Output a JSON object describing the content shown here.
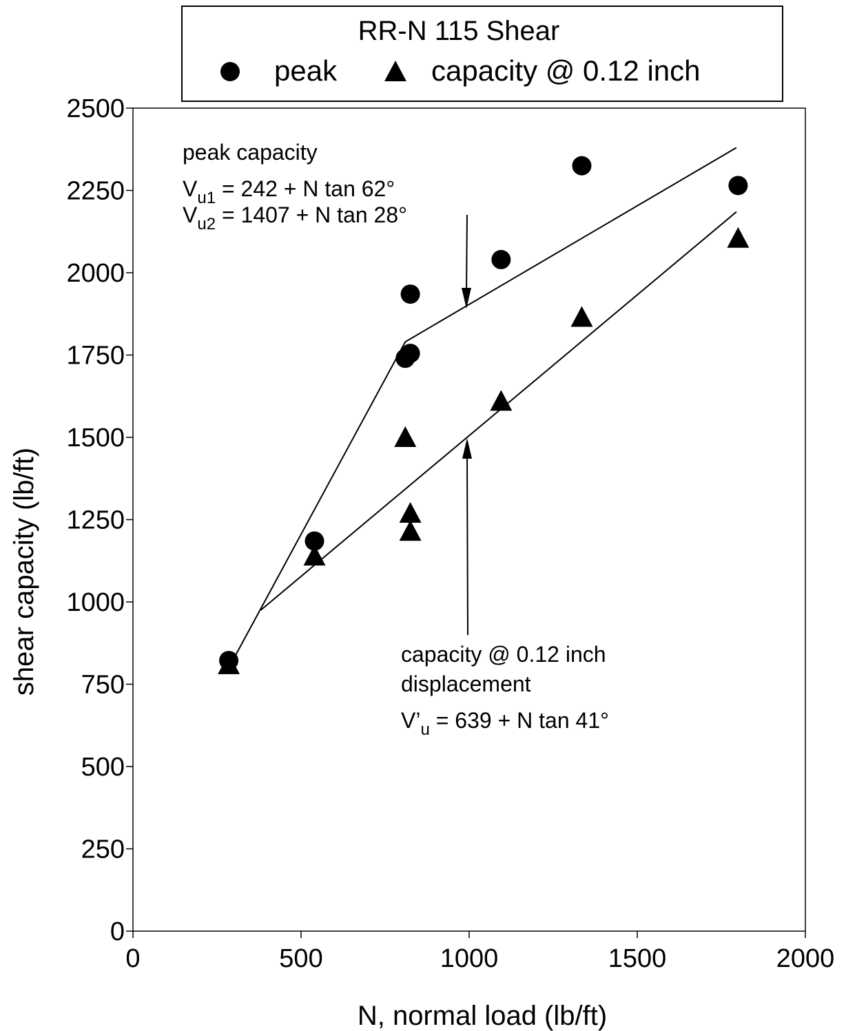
{
  "chart_data": {
    "type": "scatter",
    "title": "RR-N 115 Shear",
    "xlabel": "N, normal load (lb/ft)",
    "ylabel": "shear capacity (lb/ft)",
    "xlim": [
      0,
      2000
    ],
    "ylim": [
      0,
      2500
    ],
    "x_ticks": [
      0,
      500,
      1000,
      1500,
      2000
    ],
    "y_ticks": [
      0,
      250,
      500,
      750,
      1000,
      1250,
      1500,
      1750,
      2000,
      2250,
      2500
    ],
    "grid": false,
    "legend_position": "top",
    "series": [
      {
        "name": "peak",
        "marker": "circle",
        "color": "#000000",
        "points": [
          {
            "x": 285,
            "y": 822
          },
          {
            "x": 540,
            "y": 1185
          },
          {
            "x": 810,
            "y": 1740
          },
          {
            "x": 825,
            "y": 1755
          },
          {
            "x": 825,
            "y": 1935
          },
          {
            "x": 1095,
            "y": 2040
          },
          {
            "x": 1335,
            "y": 2325
          },
          {
            "x": 1800,
            "y": 2265
          }
        ]
      },
      {
        "name": "capacity @ 0.12 inch",
        "marker": "triangle",
        "color": "#000000",
        "points": [
          {
            "x": 285,
            "y": 810
          },
          {
            "x": 540,
            "y": 1140
          },
          {
            "x": 810,
            "y": 1500
          },
          {
            "x": 825,
            "y": 1270
          },
          {
            "x": 825,
            "y": 1215
          },
          {
            "x": 1095,
            "y": 1610
          },
          {
            "x": 1335,
            "y": 1865
          },
          {
            "x": 1800,
            "y": 2105
          }
        ]
      }
    ],
    "fit_lines": [
      {
        "points": [
          {
            "x": 285,
            "y": 800
          },
          {
            "x": 810,
            "y": 1790
          },
          {
            "x": 1795,
            "y": 2380
          }
        ]
      },
      {
        "points": [
          {
            "x": 380,
            "y": 975
          },
          {
            "x": 1795,
            "y": 2185
          }
        ]
      }
    ],
    "annotations": {
      "peak": {
        "heading": "peak capacity",
        "eq1": {
          "main": "V",
          "sub": "u1",
          "rest": " = 242 + N tan 62°"
        },
        "eq2": {
          "main": "V",
          "sub": "u2",
          "rest": " = 1407 + N tan 28°"
        }
      },
      "disp": {
        "line1": "capacity @ 0.12 inch",
        "line2": "displacement",
        "eq": {
          "main": "V’",
          "sub": "u",
          "rest": " = 639 + N tan 41°"
        }
      }
    }
  }
}
